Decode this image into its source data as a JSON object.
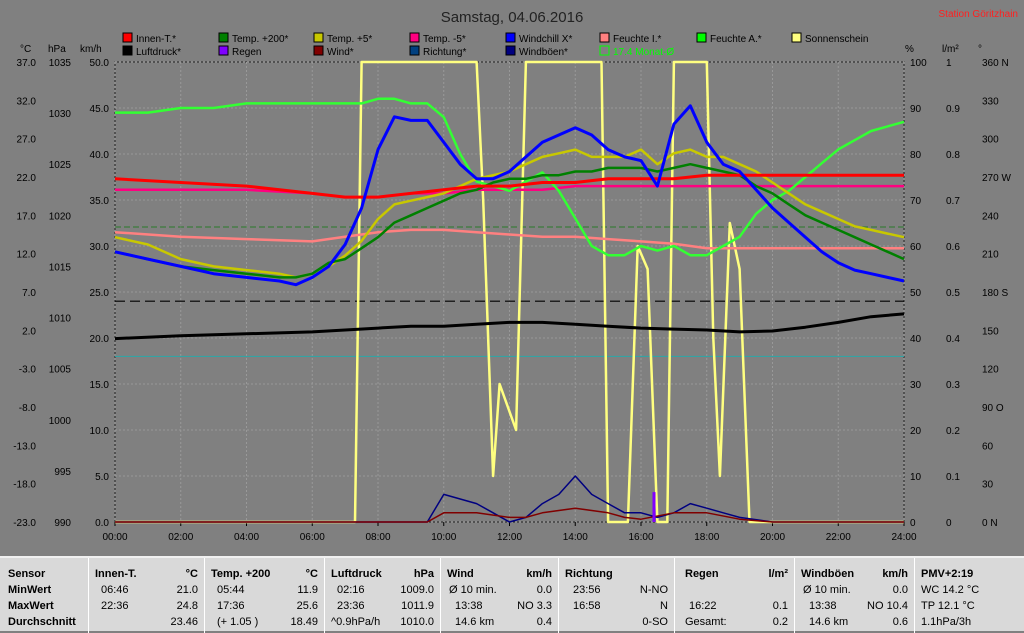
{
  "title": "Samstag, 04.06.2016",
  "station": "Station Göritzhain",
  "units": {
    "temp": "°C",
    "press": "hPa",
    "wind": "km/h",
    "pct": "%",
    "rain": "l/m²",
    "dir": "°"
  },
  "legend": [
    {
      "label": "Innen-T.*",
      "color": "#ff0000"
    },
    {
      "label": "Luftdruck*",
      "color": "#000000"
    },
    {
      "label": "Temp. +200*",
      "color": "#008000"
    },
    {
      "label": "Regen",
      "color": "#8000ff"
    },
    {
      "label": "Temp. +5*",
      "color": "#c8c800"
    },
    {
      "label": "Wind*",
      "color": "#800000"
    },
    {
      "label": "Temp. -5*",
      "color": "#ff0080"
    },
    {
      "label": "Richtung*",
      "color": "#004080"
    },
    {
      "label": "Windchill X*",
      "color": "#0000ff"
    },
    {
      "label": "Windböen*",
      "color": "#000080"
    },
    {
      "label": "Feuchte I.*",
      "color": "#ff8080"
    },
    {
      "label": "17.4 Monat-Ø",
      "color": "#00ff00",
      "outline": true
    },
    {
      "label": "Feuchte A.*",
      "color": "#00ff00"
    },
    {
      "label": "Sonnenschein",
      "color": "#ffff80"
    }
  ],
  "chart_data": {
    "type": "line",
    "x_ticks": [
      "00:00",
      "02:00",
      "04:00",
      "06:00",
      "08:00",
      "10:00",
      "12:00",
      "14:00",
      "16:00",
      "18:00",
      "20:00",
      "22:00",
      "24:00"
    ],
    "axis_temp": [
      "37.0",
      "32.0",
      "27.0",
      "22.0",
      "17.0",
      "12.0",
      "7.0",
      "2.0",
      "-3.0",
      "-8.0",
      "-13.0",
      "-18.0",
      "-23.0"
    ],
    "axis_press": [
      "1035",
      "1030",
      "1025",
      "1020",
      "1015",
      "1010",
      "1005",
      "1000",
      "995",
      "990"
    ],
    "axis_wind": [
      "50.0",
      "45.0",
      "40.0",
      "35.0",
      "30.0",
      "25.0",
      "20.0",
      "15.0",
      "10.0",
      "5.0",
      "0.0"
    ],
    "axis_pct": [
      "100",
      "90",
      "80",
      "70",
      "60",
      "50",
      "40",
      "30",
      "20",
      "10",
      "0"
    ],
    "axis_rain": [
      "1",
      "0.9",
      "0.8",
      "0.7",
      "0.6",
      "0.5",
      "0.4",
      "0.3",
      "0.2",
      "0.1",
      "0"
    ],
    "axis_dir": [
      "360 N",
      "330",
      "300",
      "270 W",
      "240",
      "210",
      "180 S",
      "150",
      "120",
      "90 O",
      "60",
      "30",
      "0 N"
    ],
    "temp_range": [
      -23,
      40
    ],
    "series": [
      {
        "name": "Feuchte A.*",
        "color": "#33ff33",
        "x": [
          0,
          1,
          2,
          3,
          4,
          5,
          5.5,
          6,
          6.5,
          7,
          7.5,
          8,
          8.5,
          9,
          9.5,
          10,
          10.5,
          11,
          11.5,
          12,
          12.5,
          13,
          13.5,
          14,
          14.5,
          15,
          15.5,
          16,
          16.5,
          17,
          17.5,
          18,
          18.5,
          19,
          19.5,
          20,
          20.5,
          21,
          21.5,
          22,
          22.5,
          23,
          23.5,
          24
        ],
        "y": [
          89,
          89,
          90,
          90,
          91,
          91,
          91,
          91,
          91,
          91,
          91,
          92,
          92,
          91,
          91,
          88,
          80,
          74,
          73,
          72,
          74,
          76,
          72,
          66,
          60,
          58,
          58,
          60,
          59,
          60,
          58,
          58,
          60,
          62,
          67,
          70,
          72,
          75,
          78,
          81,
          83,
          85,
          86,
          87
        ]
      },
      {
        "name": "Windchill X*",
        "color": "#0000ff",
        "x": [
          0,
          1,
          2,
          3,
          4,
          5,
          5.5,
          6,
          6.5,
          7,
          7.5,
          8,
          8.5,
          9,
          9.5,
          10,
          10.5,
          11,
          11.5,
          12,
          12.5,
          13,
          13.5,
          14,
          14.5,
          15,
          15.5,
          16,
          16.5,
          17,
          17.5,
          18,
          18.5,
          19,
          19.5,
          20,
          20.5,
          21,
          21.5,
          22,
          22.5,
          23,
          23.5,
          24
        ],
        "y": [
          14,
          13,
          12,
          11,
          10.5,
          10,
          9.5,
          10.5,
          12,
          15,
          20,
          28,
          32.5,
          32,
          32,
          29,
          26,
          24,
          24,
          25,
          27,
          29,
          30,
          31,
          30,
          28,
          27,
          26.5,
          23,
          31.5,
          34,
          29,
          26,
          25,
          22.5,
          20,
          18,
          16,
          14,
          12.5,
          11.5,
          11,
          10.5,
          10
        ]
      },
      {
        "name": "Temp. +5*",
        "color": "#c8c800",
        "x": [
          0,
          1,
          2,
          3,
          4,
          5,
          5.5,
          6,
          6.5,
          7,
          7.5,
          8,
          8.5,
          9,
          9.5,
          10,
          10.5,
          11,
          11.5,
          12,
          12.5,
          13,
          13.5,
          14,
          14.5,
          15,
          15.5,
          16,
          16.5,
          17,
          17.5,
          18,
          18.5,
          19,
          19.5,
          20,
          20.5,
          21,
          21.5,
          22,
          22.5,
          23,
          23.5,
          24
        ],
        "y": [
          16,
          15,
          13,
          12,
          11.5,
          11,
          10.5,
          11,
          12,
          13.5,
          15.5,
          18.5,
          20.5,
          21,
          21.5,
          22,
          23,
          24,
          24.5,
          25,
          26,
          27,
          27.5,
          28,
          27,
          27,
          27,
          28,
          26,
          27.5,
          28,
          27,
          27,
          26,
          25,
          23.5,
          22,
          20.5,
          19.5,
          18.5,
          17.5,
          17,
          16.5,
          16
        ]
      },
      {
        "name": "Temp. +200*",
        "color": "#008000",
        "x": [
          0,
          1,
          2,
          3,
          4,
          5,
          5.5,
          6,
          6.5,
          7,
          7.5,
          8,
          8.5,
          9,
          9.5,
          10,
          10.5,
          11,
          11.5,
          12,
          12.5,
          13,
          13.5,
          14,
          14.5,
          15,
          15.5,
          16,
          16.5,
          17,
          17.5,
          18,
          18.5,
          19,
          19.5,
          20,
          20.5,
          21,
          21.5,
          22,
          22.5,
          23,
          23.5,
          24
        ],
        "y": [
          14,
          13,
          12,
          11.5,
          11,
          10.5,
          10.5,
          11,
          12.5,
          13,
          14.5,
          16,
          18,
          19,
          20,
          21,
          22,
          22.5,
          23.5,
          24,
          24,
          24.5,
          24.5,
          25,
          25,
          25.5,
          25.5,
          25.5,
          25,
          25.5,
          26,
          25.5,
          25,
          24.5,
          23,
          22,
          20.5,
          19,
          18,
          17,
          16,
          15,
          14,
          13
        ]
      },
      {
        "name": "Innen-T.*",
        "color": "#ff0000",
        "x": [
          0,
          2,
          4,
          6,
          7,
          8,
          9,
          10,
          11,
          12,
          13,
          14,
          15,
          16,
          17,
          18,
          19,
          20,
          21,
          22,
          23,
          24
        ],
        "y": [
          24,
          23.5,
          23,
          22,
          21.5,
          21.5,
          22,
          22.5,
          23,
          23,
          23.5,
          23.5,
          24,
          24,
          24,
          24.5,
          24.5,
          24.5,
          24.5,
          24.5,
          24.5,
          24.5
        ]
      },
      {
        "name": "Temp. -5*",
        "color": "#ff0080",
        "x": [
          0,
          2,
          4,
          6,
          7,
          8,
          9,
          10,
          11,
          12,
          13,
          14,
          15,
          16,
          17,
          18,
          19,
          20,
          21,
          22,
          23,
          24
        ],
        "y": [
          22.5,
          22.5,
          22.5,
          22,
          21.5,
          21.5,
          22,
          22,
          22.5,
          22.5,
          22.5,
          23,
          23,
          23,
          23,
          23,
          23,
          23,
          23,
          23,
          23,
          23
        ]
      },
      {
        "name": "Feuchte I.*",
        "color": "#ff8080",
        "x": [
          0,
          2,
          4,
          6,
          7,
          8,
          9,
          10,
          11,
          12,
          13,
          14,
          15,
          16,
          17,
          18,
          19,
          20,
          21,
          22,
          23,
          24
        ],
        "y": [
          63,
          62,
          61.5,
          61,
          62,
          63,
          63.5,
          63.5,
          63,
          62.5,
          62,
          62,
          61.5,
          61,
          60.5,
          59.5,
          59.5,
          59.5,
          59.5,
          59.5,
          59.5,
          59.5
        ]
      },
      {
        "name": "Luftdruck*",
        "color": "#000000",
        "x": [
          0,
          2,
          4,
          6,
          7,
          8,
          9,
          10,
          11,
          12,
          13,
          14,
          15,
          16,
          17,
          18,
          19,
          20,
          21,
          22,
          23,
          24
        ],
        "y": [
          1009.3,
          1009.6,
          1009.8,
          1010.0,
          1010.2,
          1010.4,
          1010.6,
          1010.6,
          1010.8,
          1011.0,
          1011.0,
          1010.8,
          1010.6,
          1010.4,
          1010.3,
          1010.2,
          1010.0,
          1010.1,
          1010.5,
          1011.0,
          1011.6,
          1011.9
        ]
      },
      {
        "name": "Sonnenschein",
        "color": "#ffff80",
        "x": [
          0,
          7.3,
          7.5,
          11.0,
          11.2,
          11.5,
          11.7,
          12.2,
          12.5,
          14.8,
          15.0,
          15.6,
          15.9,
          16.2,
          16.5,
          16.8,
          17.0,
          18.0,
          18.2,
          18.4,
          18.7,
          19.0,
          19.3,
          24
        ],
        "y": [
          0,
          0,
          100,
          100,
          70,
          10,
          30,
          20,
          100,
          100,
          0,
          0,
          60,
          55,
          0,
          0,
          100,
          100,
          40,
          10,
          65,
          55,
          0,
          0
        ]
      },
      {
        "name": "Windböen*",
        "color": "#000080",
        "x": [
          0,
          9.5,
          10,
          10.5,
          11,
          11.5,
          12,
          12.5,
          13,
          13.5,
          14,
          14.5,
          15,
          15.5,
          16,
          16.5,
          17,
          17.5,
          18,
          18.5,
          19,
          20,
          24
        ],
        "y": [
          0,
          0,
          3,
          2.5,
          2,
          1,
          0,
          0.5,
          2,
          3,
          5,
          3,
          2,
          1,
          1,
          0.5,
          1,
          2,
          1.5,
          1,
          0.5,
          0,
          0
        ]
      },
      {
        "name": "Wind*",
        "color": "#800000",
        "x": [
          0,
          9.5,
          10,
          11,
          12,
          12.5,
          13,
          14,
          15,
          15.5,
          16,
          17,
          18,
          19,
          20,
          24
        ],
        "y": [
          0,
          0,
          1,
          1,
          0.5,
          0.5,
          1,
          1.5,
          1,
          0.5,
          0.3,
          1,
          1,
          0.3,
          0,
          0
        ]
      }
    ],
    "reference_lines": [
      {
        "name": "Monat-Ø",
        "value": 17.4,
        "color": "#208020"
      }
    ]
  },
  "stats": {
    "sensor": {
      "h": "Sensor",
      "r1": "MinWert",
      "r2": "MaxWert",
      "r3": "Durchschnitt"
    },
    "innen": {
      "h": "Innen-T.",
      "u": "°C",
      "r1a": "06:46",
      "r1b": "21.0",
      "r2a": "22:36",
      "r2b": "24.8",
      "r3b": "23.46"
    },
    "temp": {
      "h": "Temp. +200",
      "u": "°C",
      "r1a": "05:44",
      "r1b": "11.9",
      "r2a": "17:36",
      "r2b": "25.6",
      "r3a": "(+ 1.05 )",
      "r3b": "18.49"
    },
    "luft": {
      "h": "Luftdruck",
      "u": "hPa",
      "r1a": "02:16",
      "r1b": "1009.0",
      "r2a": "23:36",
      "r2b": "1011.9",
      "r3a": "^0.9hPa/h",
      "r3b": "1010.0"
    },
    "wind": {
      "h": "Wind",
      "u": "km/h",
      "r1a": "Ø 10 min.",
      "r1b": "0.0",
      "r2a": "13:38",
      "r2b": "NO 3.3",
      "r3a": "14.6 km",
      "r3b": "0.4"
    },
    "richt": {
      "h": "Richtung",
      "r1a": "23:56",
      "r1b": "N-NO",
      "r2a": "16:58",
      "r2b": "N",
      "r3b": "0-SO"
    },
    "regen": {
      "h": "Regen",
      "u": "l/m²",
      "r2a": "16:22",
      "r2b": "0.1",
      "r3a": "Gesamt:",
      "r3b": "0.2"
    },
    "boen": {
      "h": "Windböen",
      "u": "km/h",
      "r1a": "Ø 10 min.",
      "r1b": "0.0",
      "r2a": "13:38",
      "r2b": "NO 10.4",
      "r3a": "14.6 km",
      "r3b": "0.6"
    },
    "pmv": {
      "h": "PMV+2:19",
      "r1": "WC 14.2 °C",
      "r2": "TP 12.1 °C",
      "r3": "1.1hPa/3h"
    }
  }
}
